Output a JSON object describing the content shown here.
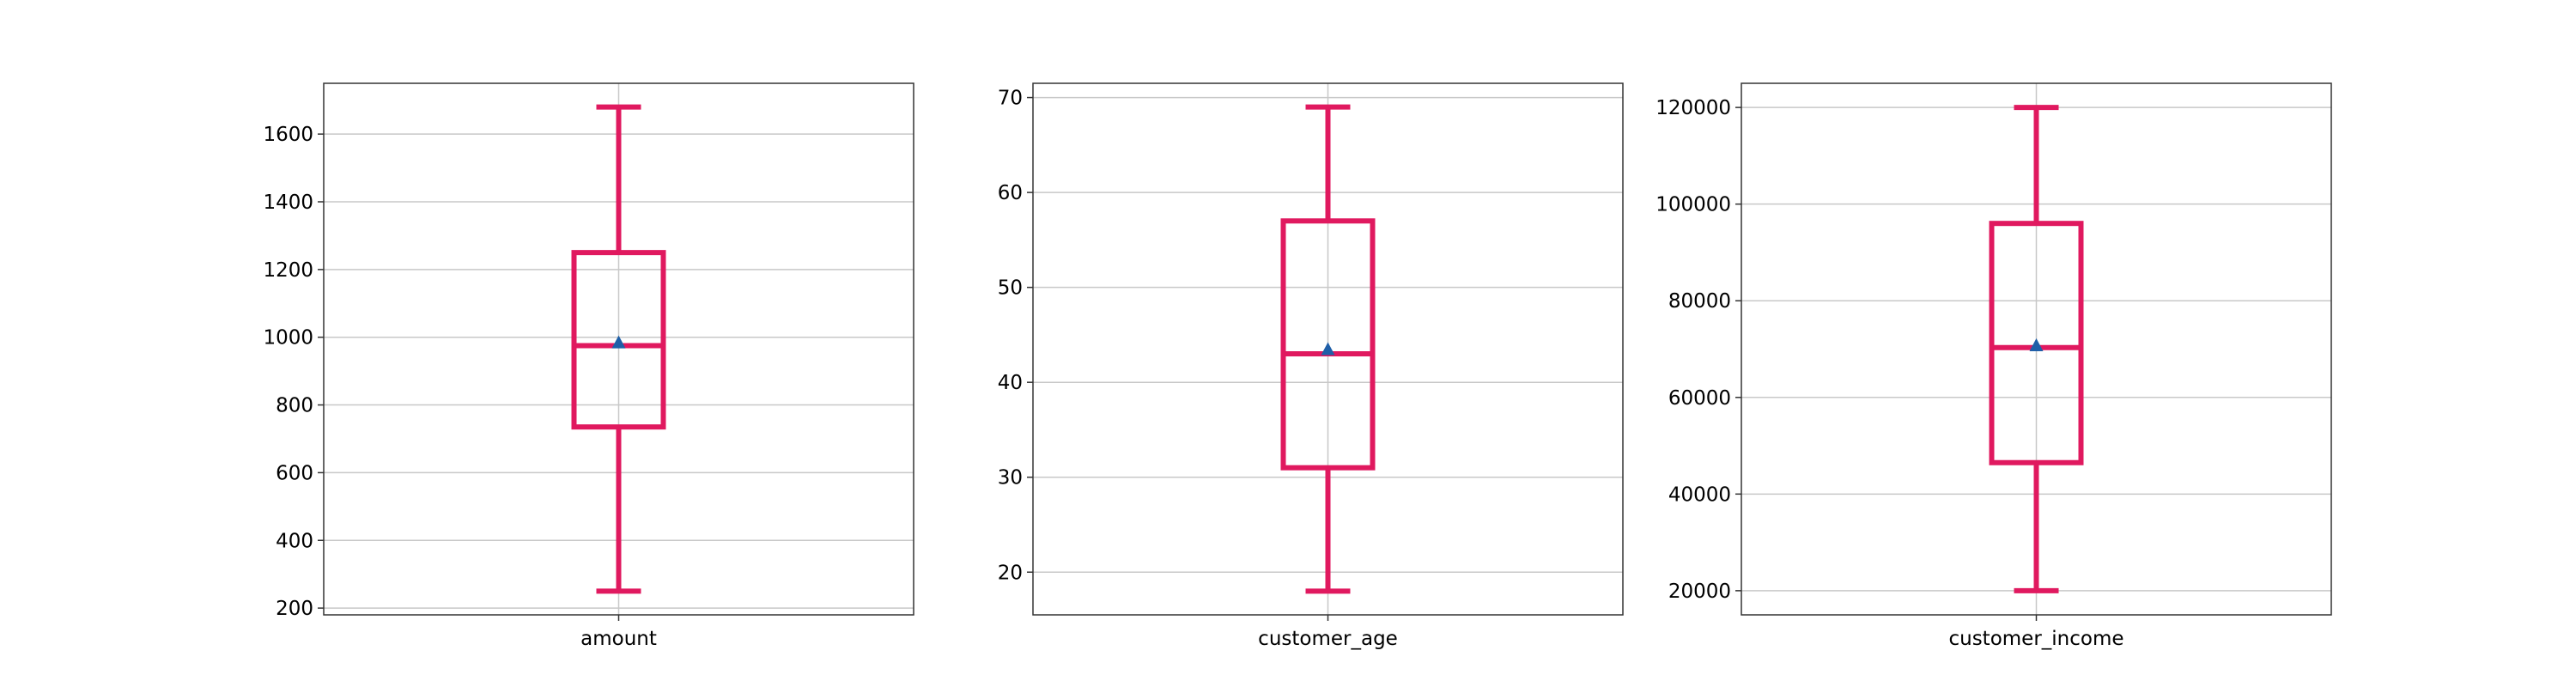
{
  "chart_data": [
    {
      "type": "box",
      "category": "amount",
      "ylim": [
        180,
        1750
      ],
      "yticks": [
        200,
        400,
        600,
        800,
        1000,
        1200,
        1400,
        1600
      ],
      "whisker_low": 250,
      "q1": 735,
      "median": 975,
      "q3": 1250,
      "whisker_high": 1680,
      "mean": 985,
      "grid": true
    },
    {
      "type": "box",
      "category": "customer_age",
      "ylim": [
        15.5,
        71.5
      ],
      "yticks": [
        20,
        30,
        40,
        50,
        60,
        70
      ],
      "whisker_low": 18,
      "q1": 31,
      "median": 43,
      "q3": 57,
      "whisker_high": 69,
      "mean": 43.5,
      "grid": true
    },
    {
      "type": "box",
      "category": "customer_income",
      "ylim": [
        15000,
        125000
      ],
      "yticks": [
        20000,
        40000,
        60000,
        80000,
        100000,
        120000
      ],
      "whisker_low": 20000,
      "q1": 46500,
      "median": 70300,
      "q3": 96000,
      "whisker_high": 120000,
      "mean": 70800,
      "grid": true
    }
  ],
  "colors": {
    "box": "#e0195f",
    "mean_marker": "#1f5fa8",
    "grid": "#c8c8c8",
    "axes": "#333333"
  }
}
